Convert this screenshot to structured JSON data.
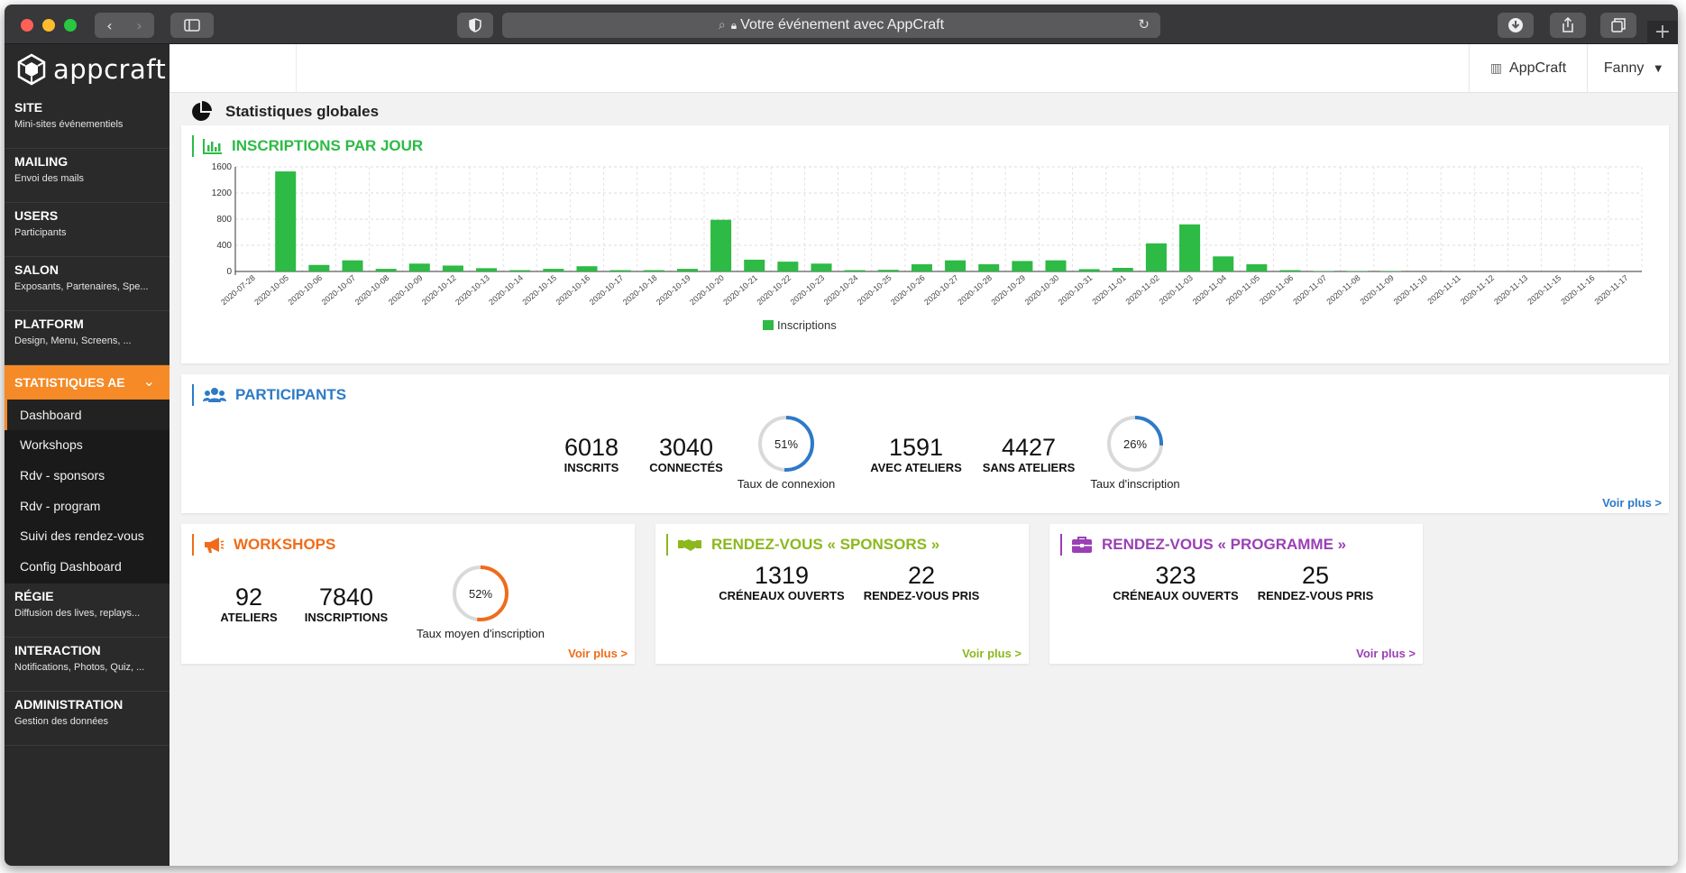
{
  "browser": {
    "url_label": "Votre événement avec AppCraft",
    "plus_label": "+"
  },
  "sidebar": {
    "brand": "appcraft",
    "sections": [
      {
        "title": "SITE",
        "subtitle": "Mini-sites événementiels"
      },
      {
        "title": "MAILING",
        "subtitle": "Envoi des mails"
      },
      {
        "title": "USERS",
        "subtitle": "Participants"
      },
      {
        "title": "SALON",
        "subtitle": "Exposants, Partenaires, Spe..."
      },
      {
        "title": "PLATFORM",
        "subtitle": "Design, Menu, Screens, ..."
      }
    ],
    "active_section": "STATISTIQUES AE",
    "sub_items": [
      "Dashboard",
      "Workshops",
      "Rdv - sponsors",
      "Rdv - program",
      "Suivi des rendez-vous",
      "Config Dashboard"
    ],
    "sections_after": [
      {
        "title": "RÉGIE",
        "subtitle": "Diffusion des lives, replays..."
      },
      {
        "title": "INTERACTION",
        "subtitle": "Notifications, Photos, Quiz, ..."
      },
      {
        "title": "ADMINISTRATION",
        "subtitle": "Gestion des données"
      }
    ]
  },
  "topbar": {
    "org": "AppCraft",
    "user": "Fanny"
  },
  "page": {
    "title": "Statistiques globales"
  },
  "inscriptions_card": {
    "title": "INSCRIPTIONS PAR JOUR",
    "color": "#2dba45"
  },
  "chart_data": {
    "type": "bar",
    "categories": [
      "2020-07-28",
      "2020-10-05",
      "2020-10-06",
      "2020-10-07",
      "2020-10-08",
      "2020-10-09",
      "2020-10-12",
      "2020-10-13",
      "2020-10-14",
      "2020-10-15",
      "2020-10-16",
      "2020-10-17",
      "2020-10-18",
      "2020-10-19",
      "2020-10-20",
      "2020-10-21",
      "2020-10-22",
      "2020-10-23",
      "2020-10-24",
      "2020-10-25",
      "2020-10-26",
      "2020-10-27",
      "2020-10-28",
      "2020-10-29",
      "2020-10-30",
      "2020-10-31",
      "2020-11-01",
      "2020-11-02",
      "2020-11-03",
      "2020-11-04",
      "2020-11-05",
      "2020-11-06",
      "2020-11-07",
      "2020-11-08",
      "2020-11-09",
      "2020-11-10",
      "2020-11-11",
      "2020-11-12",
      "2020-11-13",
      "2020-11-15",
      "2020-11-16",
      "2020-11-17"
    ],
    "series": [
      {
        "name": "Inscriptions",
        "values": [
          0,
          1530,
          100,
          170,
          40,
          120,
          90,
          50,
          20,
          40,
          80,
          20,
          20,
          40,
          790,
          180,
          150,
          120,
          20,
          25,
          110,
          170,
          110,
          160,
          170,
          35,
          55,
          430,
          720,
          230,
          110,
          20,
          5,
          5,
          5,
          0,
          0,
          0,
          0,
          0,
          0,
          0
        ],
        "color": "#2dba45"
      }
    ],
    "ylim": [
      0,
      1600
    ],
    "yticks": [
      0,
      400,
      800,
      1200,
      1600
    ],
    "grid": true,
    "legend_position": "bottom"
  },
  "participants": {
    "title": "PARTICIPANTS",
    "color": "#2d7ac7",
    "inscrits": {
      "value": "6018",
      "label": "INSCRITS"
    },
    "connectes": {
      "value": "3040",
      "label": "CONNECTÉS"
    },
    "taux_connexion": {
      "percent": 51,
      "text": "51%",
      "label": "Taux de connexion"
    },
    "avec_ateliers": {
      "value": "1591",
      "label": "AVEC ATELIERS"
    },
    "sans_ateliers": {
      "value": "4427",
      "label": "SANS ATELIERS"
    },
    "taux_inscription": {
      "percent": 26,
      "text": "26%",
      "label": "Taux d'inscription"
    },
    "more": "Voir plus >"
  },
  "workshops": {
    "title": "WORKSHOPS",
    "color": "#ef6c1a",
    "ateliers": {
      "value": "92",
      "label": "ATELIERS"
    },
    "inscriptions": {
      "value": "7840",
      "label": "INSCRIPTIONS"
    },
    "taux": {
      "percent": 52,
      "text": "52%",
      "label": "Taux moyen d'inscription"
    },
    "more": "Voir plus >"
  },
  "rdv_sponsors": {
    "title": "RENDEZ-VOUS « SPONSORS »",
    "color": "#8cb81e",
    "creneaux": {
      "value": "1319",
      "label": "CRÉNEAUX OUVERTS"
    },
    "rdv": {
      "value": "22",
      "label": "RENDEZ-VOUS PRIS"
    },
    "more": "Voir plus >"
  },
  "rdv_programme": {
    "title": "RENDEZ-VOUS « PROGRAMME »",
    "color": "#9b3fb5",
    "creneaux": {
      "value": "323",
      "label": "CRÉNEAUX OUVERTS"
    },
    "rdv": {
      "value": "25",
      "label": "RENDEZ-VOUS PRIS"
    },
    "more": "Voir plus >"
  }
}
